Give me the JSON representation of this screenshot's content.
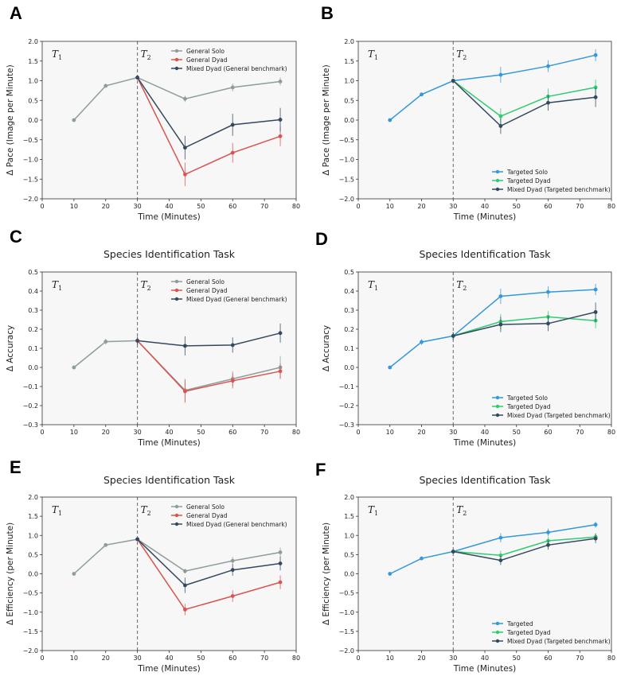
{
  "chart_data": [
    {
      "panel": "A",
      "type": "line",
      "title": "",
      "xlabel": "Time (Minutes)",
      "ylabel": "Δ Pace (Image per Minute)",
      "xlim": [
        0,
        80
      ],
      "ylim": [
        -2.0,
        2.0
      ],
      "xticks": [
        0,
        10,
        20,
        30,
        40,
        50,
        60,
        70,
        80
      ],
      "yticks": [
        -2.0,
        -1.5,
        -1.0,
        -0.5,
        0.0,
        0.5,
        1.0,
        1.5,
        2.0
      ],
      "tick_decimals": 1,
      "legend_position": "top-right",
      "vline": 30,
      "annotations": [
        "T1",
        "T2"
      ],
      "series": [
        {
          "name": "General Solo",
          "color": "#8e9d9a",
          "x": [
            10,
            20,
            30,
            45,
            60,
            75
          ],
          "y": [
            0.0,
            0.87,
            1.08,
            0.54,
            0.83,
            0.98
          ],
          "err": [
            0,
            0.04,
            0.05,
            0.08,
            0.1,
            0.1
          ]
        },
        {
          "name": "General Dyad",
          "color": "#d9534f",
          "x": [
            30,
            45,
            60,
            75
          ],
          "y": [
            1.08,
            -1.38,
            -0.83,
            -0.41
          ],
          "err": [
            0.05,
            0.3,
            0.25,
            0.25
          ]
        },
        {
          "name": "Mixed Dyad (General benchmark)",
          "color": "#34495e",
          "x": [
            30,
            45,
            60,
            75
          ],
          "y": [
            1.08,
            -0.7,
            -0.12,
            0.01
          ],
          "err": [
            0.05,
            0.3,
            0.28,
            0.3
          ]
        }
      ]
    },
    {
      "panel": "B",
      "type": "line",
      "title": "",
      "xlabel": "Time (Minutes)",
      "ylabel": "Δ Pace (Image per Minute)",
      "xlim": [
        0,
        80
      ],
      "ylim": [
        -2.0,
        2.0
      ],
      "xticks": [
        0,
        10,
        20,
        30,
        40,
        50,
        60,
        70,
        80
      ],
      "yticks": [
        -2.0,
        -1.5,
        -1.0,
        -0.5,
        0.0,
        0.5,
        1.0,
        1.5,
        2.0
      ],
      "tick_decimals": 1,
      "legend_position": "bottom-right",
      "vline": 30,
      "annotations": [
        "T1",
        "T2"
      ],
      "series": [
        {
          "name": "Targeted Solo",
          "color": "#3498db",
          "x": [
            10,
            20,
            30,
            45,
            60,
            75
          ],
          "y": [
            0.0,
            0.65,
            1.0,
            1.15,
            1.37,
            1.65
          ],
          "err": [
            0,
            0.04,
            0.05,
            0.2,
            0.15,
            0.15
          ]
        },
        {
          "name": "Targeted Dyad",
          "color": "#2ecc71",
          "x": [
            30,
            45,
            60,
            75
          ],
          "y": [
            1.0,
            0.1,
            0.6,
            0.83
          ],
          "err": [
            0.05,
            0.2,
            0.2,
            0.2
          ]
        },
        {
          "name": "Mixed Dyad (Targeted benchmark)",
          "color": "#34495e",
          "x": [
            30,
            45,
            60,
            75
          ],
          "y": [
            1.0,
            -0.15,
            0.44,
            0.58
          ],
          "err": [
            0.05,
            0.2,
            0.2,
            0.25
          ]
        }
      ]
    },
    {
      "panel": "C",
      "type": "line",
      "title": "Species Identification Task",
      "xlabel": "Time (Minutes)",
      "ylabel": "Δ Accuracy",
      "xlim": [
        0,
        80
      ],
      "ylim": [
        -0.3,
        0.5
      ],
      "xticks": [
        0,
        10,
        20,
        30,
        40,
        50,
        60,
        70,
        80
      ],
      "yticks": [
        -0.3,
        -0.2,
        -0.1,
        0.0,
        0.1,
        0.2,
        0.3,
        0.4,
        0.5
      ],
      "tick_decimals": 1,
      "legend_position": "top-right",
      "vline": 30,
      "annotations": [
        "T1",
        "T2"
      ],
      "series": [
        {
          "name": "General Solo",
          "color": "#8e9d9a",
          "x": [
            10,
            20,
            30,
            45,
            60,
            75
          ],
          "y": [
            0.0,
            0.135,
            0.14,
            -0.12,
            -0.06,
            0.0
          ],
          "err": [
            0,
            0.015,
            0.02,
            0.06,
            0.04,
            0.06
          ]
        },
        {
          "name": "General Dyad",
          "color": "#d9534f",
          "x": [
            30,
            45,
            60,
            75
          ],
          "y": [
            0.14,
            -0.125,
            -0.07,
            -0.02
          ],
          "err": [
            0.02,
            0.06,
            0.04,
            0.04
          ]
        },
        {
          "name": "Mixed Dyad (General benchmark)",
          "color": "#34495e",
          "x": [
            30,
            45,
            60,
            75
          ],
          "y": [
            0.14,
            0.113,
            0.117,
            0.18
          ],
          "err": [
            0.02,
            0.05,
            0.04,
            0.05
          ]
        }
      ]
    },
    {
      "panel": "D",
      "type": "line",
      "title": "Species Identification Task",
      "xlabel": "Time (Minutes)",
      "ylabel": "Δ Accuracy",
      "xlim": [
        0,
        80
      ],
      "ylim": [
        -0.3,
        0.5
      ],
      "xticks": [
        0,
        10,
        20,
        30,
        40,
        50,
        60,
        70,
        80
      ],
      "yticks": [
        -0.3,
        -0.2,
        -0.1,
        0.0,
        0.1,
        0.2,
        0.3,
        0.4,
        0.5
      ],
      "tick_decimals": 1,
      "legend_position": "bottom-right",
      "vline": 30,
      "annotations": [
        "T1",
        "T2"
      ],
      "series": [
        {
          "name": "Targeted Solo",
          "color": "#3498db",
          "x": [
            10,
            20,
            30,
            45,
            60,
            75
          ],
          "y": [
            0.0,
            0.133,
            0.165,
            0.373,
            0.395,
            0.408
          ],
          "err": [
            0,
            0.015,
            0.02,
            0.04,
            0.03,
            0.03
          ]
        },
        {
          "name": "Targeted Dyad",
          "color": "#2ecc71",
          "x": [
            30,
            45,
            60,
            75
          ],
          "y": [
            0.165,
            0.24,
            0.265,
            0.245
          ],
          "err": [
            0.02,
            0.04,
            0.03,
            0.04
          ]
        },
        {
          "name": "Mixed Dyad (Targeted benchmark)",
          "color": "#34495e",
          "x": [
            30,
            45,
            60,
            75
          ],
          "y": [
            0.165,
            0.225,
            0.23,
            0.29
          ],
          "err": [
            0.02,
            0.04,
            0.04,
            0.05
          ]
        }
      ]
    },
    {
      "panel": "E",
      "type": "line",
      "title": "Species Identification Task",
      "xlabel": "Time (Minutes)",
      "ylabel": "Δ Efficiency (per Minute)",
      "xlim": [
        0,
        80
      ],
      "ylim": [
        -2.0,
        2.0
      ],
      "xticks": [
        0,
        10,
        20,
        30,
        40,
        50,
        60,
        70,
        80
      ],
      "yticks": [
        -2.0,
        -1.5,
        -1.0,
        -0.5,
        0.0,
        0.5,
        1.0,
        1.5,
        2.0
      ],
      "tick_decimals": 1,
      "legend_position": "top-right",
      "vline": 30,
      "annotations": [
        "T1",
        "T2"
      ],
      "series": [
        {
          "name": "General Solo",
          "color": "#8e9d9a",
          "x": [
            10,
            20,
            30,
            45,
            60,
            75
          ],
          "y": [
            0.0,
            0.75,
            0.9,
            0.07,
            0.34,
            0.56
          ],
          "err": [
            0,
            0.04,
            0.05,
            0.06,
            0.1,
            0.12
          ]
        },
        {
          "name": "General Dyad",
          "color": "#d9534f",
          "x": [
            30,
            45,
            60,
            75
          ],
          "y": [
            0.9,
            -0.93,
            -0.58,
            -0.22
          ],
          "err": [
            0.05,
            0.15,
            0.15,
            0.18
          ]
        },
        {
          "name": "Mixed Dyad (General benchmark)",
          "color": "#34495e",
          "x": [
            30,
            45,
            60,
            75
          ],
          "y": [
            0.9,
            -0.3,
            0.1,
            0.27
          ],
          "err": [
            0.05,
            0.2,
            0.15,
            0.18
          ]
        }
      ]
    },
    {
      "panel": "F",
      "type": "line",
      "title": "Species Identification Task",
      "xlabel": "Time (Minutes)",
      "ylabel": "Δ Efficiency (per Minute)",
      "xlim": [
        0,
        80
      ],
      "ylim": [
        -2.0,
        2.0
      ],
      "xticks": [
        0,
        10,
        20,
        30,
        40,
        50,
        60,
        70,
        80
      ],
      "yticks": [
        -2.0,
        -1.5,
        -1.0,
        -0.5,
        0.0,
        0.5,
        1.0,
        1.5,
        2.0
      ],
      "tick_decimals": 1,
      "legend_position": "bottom-right",
      "vline": 30,
      "annotations": [
        "T1",
        "T2"
      ],
      "series": [
        {
          "name": "Targeted",
          "color": "#3498db",
          "x": [
            10,
            20,
            30,
            45,
            60,
            75
          ],
          "y": [
            0.0,
            0.4,
            0.58,
            0.94,
            1.08,
            1.28
          ],
          "err": [
            0,
            0.03,
            0.04,
            0.12,
            0.1,
            0.08
          ]
        },
        {
          "name": "Targeted Dyad",
          "color": "#2ecc71",
          "x": [
            30,
            45,
            60,
            75
          ],
          "y": [
            0.58,
            0.48,
            0.86,
            0.96
          ],
          "err": [
            0.04,
            0.12,
            0.1,
            0.1
          ]
        },
        {
          "name": "Mixed Dyad (Targeted benchmark)",
          "color": "#34495e",
          "x": [
            30,
            45,
            60,
            75
          ],
          "y": [
            0.58,
            0.35,
            0.75,
            0.92
          ],
          "err": [
            0.04,
            0.12,
            0.12,
            0.12
          ]
        }
      ]
    }
  ]
}
